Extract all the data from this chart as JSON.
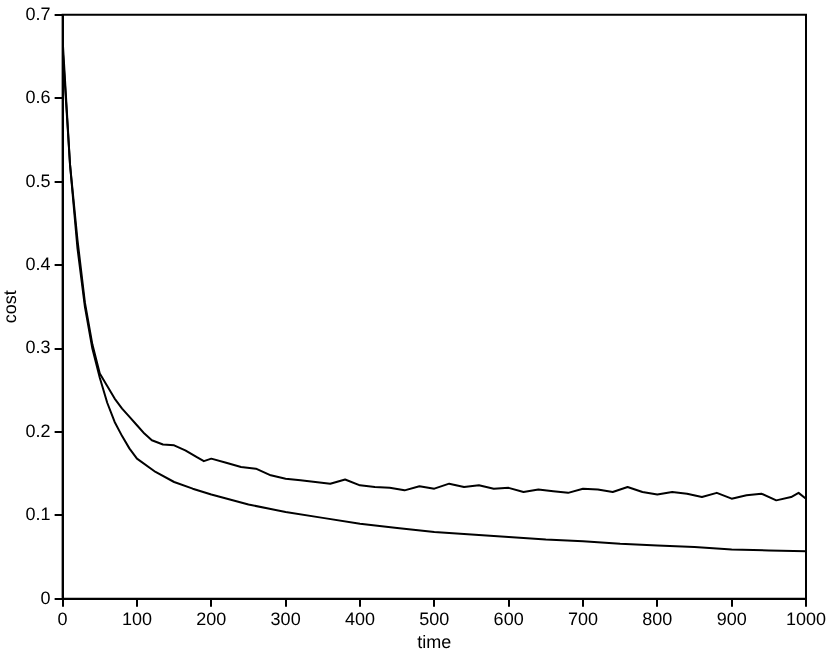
{
  "chart_data": {
    "type": "line",
    "xlabel": "time",
    "ylabel": "cost",
    "xlim": [
      0,
      1000
    ],
    "ylim": [
      0,
      0.7
    ],
    "xticks": [
      0,
      100,
      200,
      300,
      400,
      500,
      600,
      700,
      800,
      900,
      1000
    ],
    "yticks": [
      0,
      0.1,
      0.2,
      0.3,
      0.4,
      0.5,
      0.6,
      0.7
    ],
    "grid": false,
    "legend": false,
    "marker": "none",
    "line_style": "solid",
    "series": [
      {
        "color": "#000000",
        "x": [
          0,
          10,
          20,
          30,
          40,
          50,
          60,
          70,
          80,
          90,
          100,
          125,
          150,
          175,
          200,
          250,
          300,
          350,
          400,
          450,
          500,
          550,
          600,
          650,
          700,
          750,
          800,
          850,
          900,
          950,
          1000
        ],
        "values": [
          0.66,
          0.52,
          0.42,
          0.35,
          0.3,
          0.265,
          0.235,
          0.212,
          0.195,
          0.18,
          0.168,
          0.152,
          0.14,
          0.132,
          0.125,
          0.113,
          0.104,
          0.097,
          0.09,
          0.085,
          0.08,
          0.077,
          0.074,
          0.071,
          0.069,
          0.066,
          0.064,
          0.062,
          0.059,
          0.058,
          0.057
        ]
      },
      {
        "color": "#000000",
        "x": [
          0,
          10,
          20,
          30,
          40,
          50,
          60,
          70,
          80,
          90,
          100,
          110,
          120,
          135,
          150,
          165,
          180,
          190,
          200,
          220,
          240,
          260,
          280,
          300,
          320,
          340,
          360,
          380,
          400,
          420,
          440,
          460,
          480,
          500,
          520,
          540,
          560,
          580,
          600,
          620,
          640,
          660,
          680,
          700,
          720,
          740,
          760,
          780,
          800,
          820,
          840,
          860,
          880,
          900,
          920,
          940,
          960,
          980,
          990,
          1000
        ],
        "values": [
          0.67,
          0.52,
          0.43,
          0.355,
          0.305,
          0.27,
          0.255,
          0.24,
          0.228,
          0.218,
          0.208,
          0.198,
          0.19,
          0.185,
          0.184,
          0.178,
          0.17,
          0.165,
          0.168,
          0.163,
          0.158,
          0.156,
          0.148,
          0.144,
          0.142,
          0.14,
          0.138,
          0.143,
          0.136,
          0.134,
          0.133,
          0.13,
          0.135,
          0.132,
          0.138,
          0.134,
          0.136,
          0.132,
          0.133,
          0.128,
          0.131,
          0.129,
          0.127,
          0.132,
          0.131,
          0.128,
          0.134,
          0.128,
          0.125,
          0.128,
          0.126,
          0.122,
          0.127,
          0.12,
          0.124,
          0.126,
          0.118,
          0.122,
          0.127,
          0.12
        ]
      }
    ]
  }
}
